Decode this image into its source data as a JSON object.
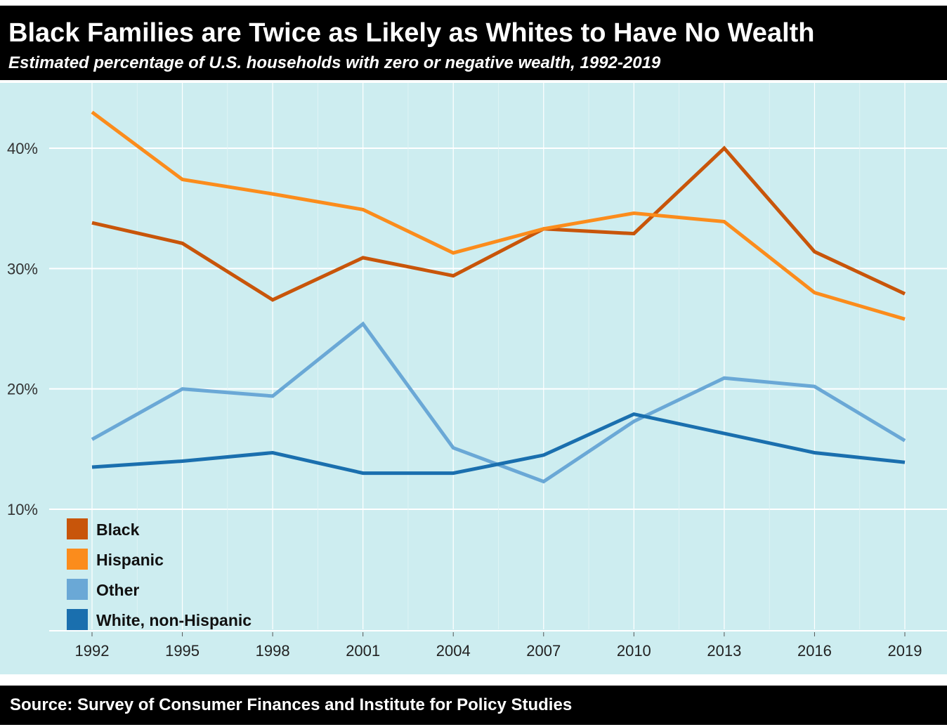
{
  "title": "Black Families are Twice as Likely as Whites to Have No Wealth",
  "subtitle": "Estimated percentage of U.S. households with zero or negative wealth, 1992-2019",
  "source": "Source: Survey of Consumer Finances and Institute for Policy Studies",
  "colors": {
    "background": "#cdedf0",
    "Black": "#c8550a",
    "Hispanic": "#fb8c1c",
    "Other": "#6aa8d6",
    "White, non-Hispanic": "#1a6fae"
  },
  "chart_data": {
    "type": "line",
    "x": [
      "1992",
      "1995",
      "1998",
      "2001",
      "2004",
      "2007",
      "2010",
      "2013",
      "2016",
      "2019"
    ],
    "ylim": [
      1,
      45
    ],
    "yticks": [
      10,
      20,
      30,
      40
    ],
    "ytick_labels": [
      "10%",
      "20%",
      "30%",
      "40%"
    ],
    "grid": true,
    "legend": "bottom-left",
    "series": [
      {
        "name": "Black",
        "values": [
          33.8,
          32.1,
          27.4,
          30.9,
          29.4,
          33.3,
          32.9,
          40.0,
          31.4,
          27.9
        ]
      },
      {
        "name": "Hispanic",
        "values": [
          43.0,
          37.4,
          36.2,
          34.9,
          31.3,
          33.3,
          34.6,
          33.9,
          28.0,
          25.8
        ]
      },
      {
        "name": "Other",
        "values": [
          15.8,
          20.0,
          19.4,
          25.4,
          15.1,
          12.3,
          17.3,
          20.9,
          20.2,
          15.7
        ]
      },
      {
        "name": "White, non-Hispanic",
        "values": [
          13.5,
          14.0,
          14.7,
          13.0,
          13.0,
          14.5,
          17.9,
          16.3,
          14.7,
          13.9
        ]
      }
    ]
  }
}
